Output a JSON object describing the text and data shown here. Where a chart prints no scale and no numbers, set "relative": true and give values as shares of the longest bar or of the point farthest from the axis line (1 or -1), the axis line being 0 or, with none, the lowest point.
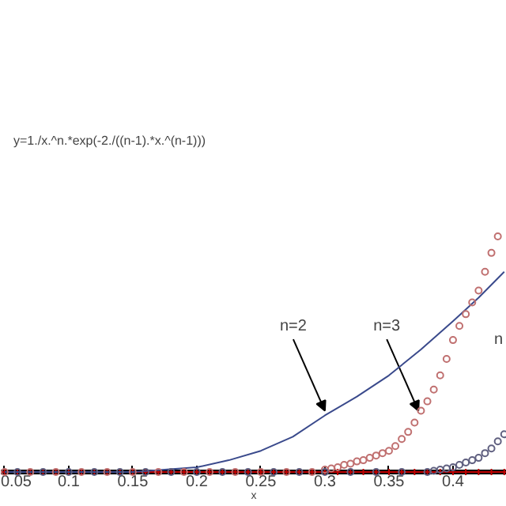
{
  "chart_data": {
    "type": "line",
    "relative": true,
    "xlabel": "x",
    "xlim": [
      0.047,
      0.442
    ],
    "xticks": [
      0.05,
      0.1,
      0.15,
      0.2,
      0.25,
      0.3,
      0.35,
      0.4
    ],
    "grid": false,
    "annotations": [
      "y=1./x.^n.*exp(-2./((n-1).*x.^(n-1)))",
      {
        "text": "n=2",
        "x": 0.3,
        "y": 0.26
      },
      {
        "text": "n=3",
        "x": 0.373,
        "y": 0.26
      },
      "n"
    ],
    "series": [
      {
        "color": "#c00000",
        "marker": "cross",
        "line_style": "solid",
        "x": [
          0.05,
          0.06,
          0.07,
          0.08,
          0.09,
          0.1,
          0.11,
          0.12,
          0.13,
          0.14,
          0.15,
          0.16,
          0.17,
          0.18,
          0.19,
          0.2,
          0.21,
          0.22,
          0.23,
          0.24,
          0.25,
          0.26,
          0.27,
          0.28,
          0.29,
          0.3,
          0.31,
          0.32,
          0.33,
          0.34,
          0.35,
          0.36,
          0.37,
          0.38,
          0.39,
          0.4,
          0.41,
          0.42,
          0.43,
          0.44
        ],
        "values": [
          0,
          0,
          0,
          0,
          0,
          0,
          0,
          0,
          0,
          0,
          0,
          0,
          0,
          0,
          0,
          0,
          0,
          0,
          0,
          0,
          0,
          0,
          0,
          0,
          0,
          0,
          0,
          0,
          0,
          0,
          0,
          0,
          0,
          0,
          0,
          0,
          0,
          0,
          0,
          0
        ]
      },
      {
        "color": "#3a4a8c",
        "marker": "none",
        "line_style": "solid",
        "x": [
          0.05,
          0.15,
          0.2,
          0.225,
          0.25,
          0.275,
          0.3,
          0.325,
          0.35,
          0.375,
          0.4,
          0.42,
          0.44
        ],
        "values": [
          0,
          0,
          0.02,
          0.05,
          0.09,
          0.15,
          0.24,
          0.32,
          0.41,
          0.52,
          0.64,
          0.74,
          0.85
        ]
      },
      {
        "type": "scatter",
        "color": "#c07070",
        "marker": "circle",
        "x": [
          0.05,
          0.07,
          0.09,
          0.11,
          0.13,
          0.15,
          0.17,
          0.19,
          0.21,
          0.23,
          0.25,
          0.27,
          0.29,
          0.3,
          0.305,
          0.31,
          0.315,
          0.32,
          0.325,
          0.33,
          0.335,
          0.34,
          0.345,
          0.35,
          0.355,
          0.36,
          0.365,
          0.37,
          0.375,
          0.38,
          0.385,
          0.39,
          0.395,
          0.4,
          0.405,
          0.41,
          0.415,
          0.42,
          0.425,
          0.43,
          0.435
        ],
        "values": [
          0,
          0,
          0,
          0,
          0,
          0,
          0,
          0,
          0,
          0,
          0,
          0,
          0,
          0.01,
          0.015,
          0.02,
          0.03,
          0.035,
          0.045,
          0.05,
          0.06,
          0.07,
          0.08,
          0.09,
          0.11,
          0.14,
          0.17,
          0.21,
          0.26,
          0.3,
          0.35,
          0.41,
          0.48,
          0.56,
          0.62,
          0.67,
          0.72,
          0.77,
          0.85,
          0.93,
          1.0
        ]
      },
      {
        "type": "scatter",
        "color": "#606080",
        "marker": "circle",
        "x": [
          0.06,
          0.08,
          0.1,
          0.12,
          0.14,
          0.16,
          0.18,
          0.2,
          0.22,
          0.24,
          0.26,
          0.28,
          0.3,
          0.32,
          0.34,
          0.36,
          0.38,
          0.385,
          0.39,
          0.395,
          0.4,
          0.405,
          0.41,
          0.415,
          0.42,
          0.425,
          0.43,
          0.435,
          0.44
        ],
        "values": [
          0,
          0,
          0,
          0,
          0,
          0,
          0,
          0,
          0,
          0,
          0,
          0,
          0,
          0,
          0,
          0,
          0,
          0.005,
          0.01,
          0.015,
          0.02,
          0.03,
          0.04,
          0.05,
          0.06,
          0.08,
          0.1,
          0.13,
          0.16
        ]
      }
    ]
  }
}
